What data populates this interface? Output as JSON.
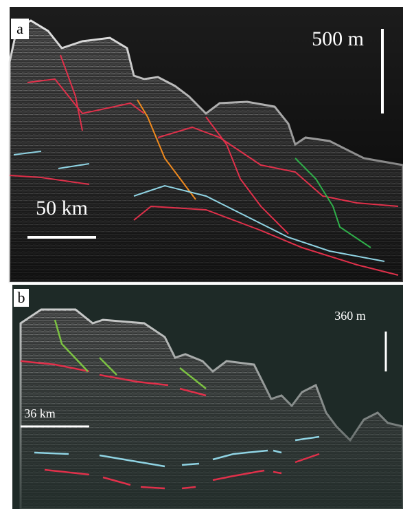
{
  "panels": [
    {
      "label": "a",
      "vertical_scale": "500 m",
      "horizontal_scale": "50 km"
    },
    {
      "label": "b",
      "vertical_scale": "360 m",
      "horizontal_scale": "36 km"
    }
  ]
}
